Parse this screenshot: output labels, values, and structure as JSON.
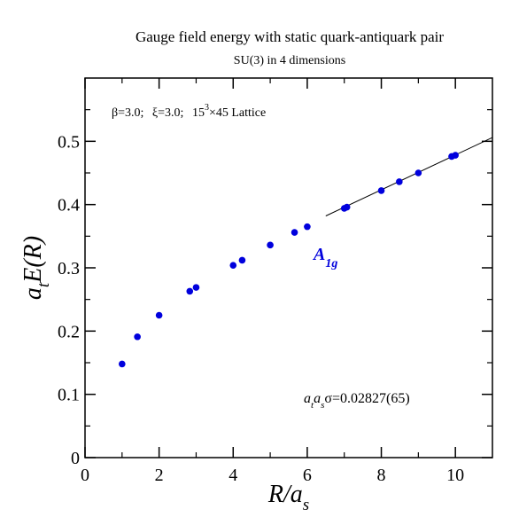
{
  "chart_data": {
    "type": "scatter",
    "title": "Gauge field energy with static quark-antiquark pair",
    "subtitle": "SU(3) in 4 dimensions",
    "xlabel": {
      "main": "R/a",
      "sub": "s"
    },
    "ylabel": {
      "pre": "a",
      "sub": "t",
      "post": "E(R)"
    },
    "xlim": [
      0,
      11
    ],
    "ylim": [
      0,
      0.6
    ],
    "x_ticks": [
      0,
      2,
      4,
      6,
      8,
      10
    ],
    "x_tick_labels": [
      "0",
      "2",
      "4",
      "6",
      "8",
      "10"
    ],
    "y_ticks": [
      0,
      0.1,
      0.2,
      0.3,
      0.4,
      0.5
    ],
    "y_tick_labels": [
      "0",
      "0.1",
      "0.2",
      "0.3",
      "0.4",
      "0.5"
    ],
    "grid": false,
    "annotations": {
      "lattice": {
        "beta": "β=3.0;",
        "xi": "ξ=3.0;",
        "size_base": "15",
        "size_sup": "3",
        "size_rest": "×45 Lattice"
      },
      "state": {
        "main": "A",
        "sub": "1g"
      },
      "string_tension": {
        "a1": "a",
        "s1": "t",
        "a2": "a",
        "s2": "s",
        "rest": "σ=0.02827(65)"
      }
    },
    "series": [
      {
        "color": "#0000dd",
        "points": [
          [
            1.0,
            0.148
          ],
          [
            1.414,
            0.191
          ],
          [
            2.0,
            0.225
          ],
          [
            2.828,
            0.263
          ],
          [
            3.0,
            0.269
          ],
          [
            4.0,
            0.304
          ],
          [
            4.243,
            0.312
          ],
          [
            5.0,
            0.336
          ],
          [
            5.657,
            0.356
          ],
          [
            6.0,
            0.365
          ],
          [
            7.0,
            0.394
          ],
          [
            7.071,
            0.396
          ],
          [
            8.0,
            0.422
          ],
          [
            8.485,
            0.436
          ],
          [
            9.0,
            0.45
          ],
          [
            9.899,
            0.476
          ],
          [
            10.0,
            0.478
          ]
        ]
      }
    ],
    "fit_line": {
      "x": [
        6.5,
        11.0
      ],
      "y": [
        0.382,
        0.506
      ],
      "color": "#000000"
    }
  }
}
